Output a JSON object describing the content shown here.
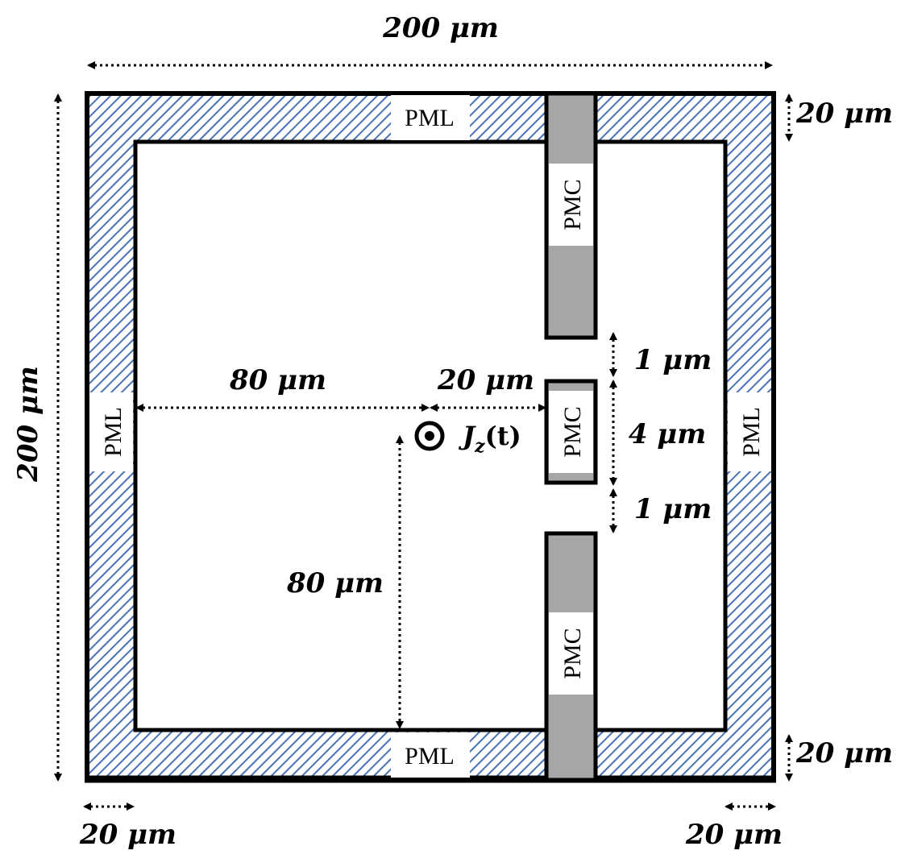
{
  "labels": {
    "total_width": "200 μm",
    "total_height": "200 μm",
    "pml_thickness_top": "20 μm",
    "pml_thickness_bottom": "20 μm",
    "pml_thickness_left": "20 μm",
    "pml_thickness_right": "20 μm",
    "source_to_left": "80 μm",
    "source_to_pmc": "20 μm",
    "source_to_bottom": "80 μm",
    "gap_upper": "1 μm",
    "gap_lower": "1 μm",
    "center_pmc_height": "4 μm",
    "pml_top": "PML",
    "pml_bottom": "PML",
    "pml_left": "PML",
    "pml_right": "PML",
    "pmc_upper": "PMC",
    "pmc_center": "PMC",
    "pmc_lower": "PMC",
    "source_J": "J",
    "source_sub": "z",
    "source_arg": "(t)"
  },
  "colors": {
    "pml_stripe": "#4a72b8",
    "pmc_fill": "#a6a6a6",
    "border": "#000000",
    "background": "#ffffff"
  }
}
